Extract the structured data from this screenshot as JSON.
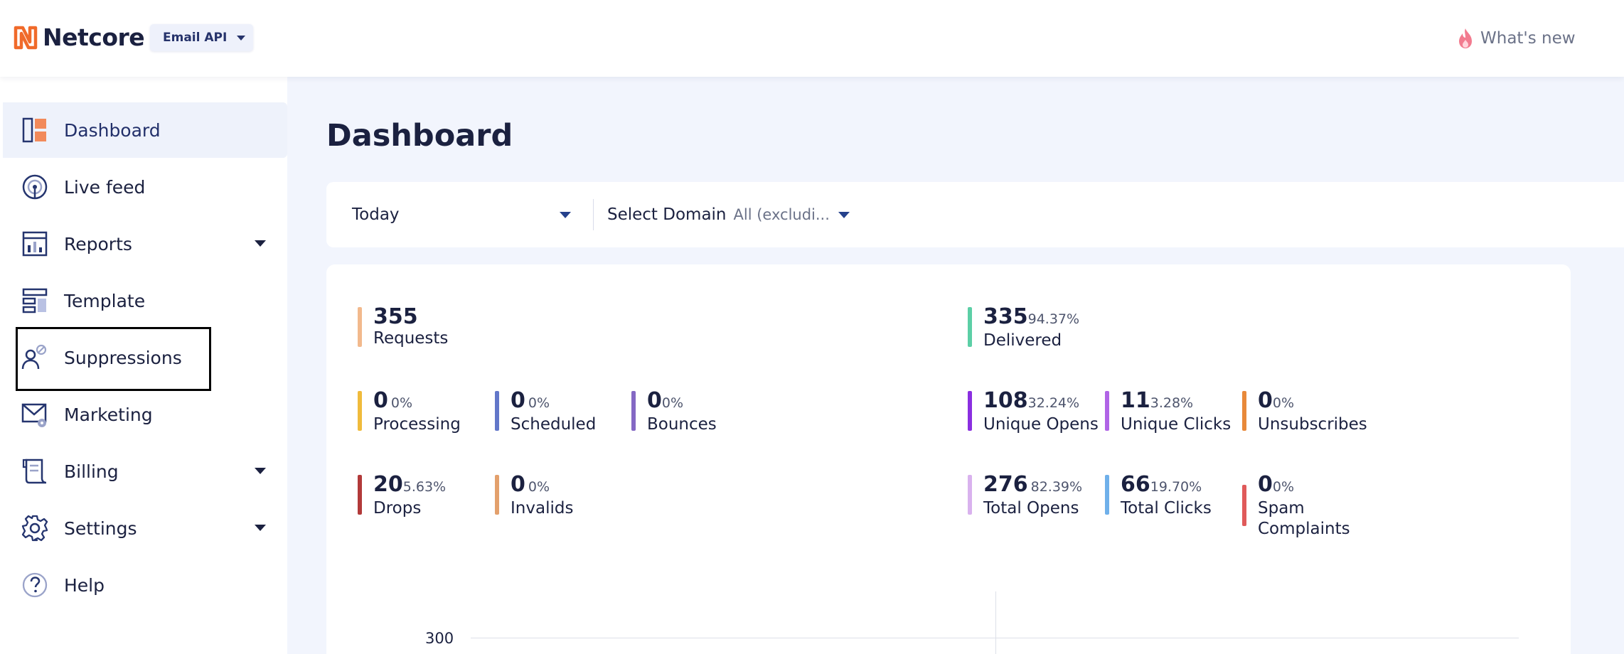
{
  "header": {
    "brand": "Netcore",
    "product": "Email API",
    "whats_new": "What's new"
  },
  "sidebar": {
    "items": [
      {
        "label": "Dashboard",
        "icon": "dashboard-icon",
        "active": true
      },
      {
        "label": "Live feed",
        "icon": "live-feed-icon"
      },
      {
        "label": "Reports",
        "icon": "reports-icon",
        "expandable": true
      },
      {
        "label": "Template",
        "icon": "template-icon"
      },
      {
        "label": "Suppressions",
        "icon": "suppressions-icon",
        "highlighted": true
      },
      {
        "label": "Marketing",
        "icon": "marketing-icon"
      },
      {
        "label": "Billing",
        "icon": "billing-icon",
        "expandable": true
      },
      {
        "label": "Settings",
        "icon": "gear-icon",
        "expandable": true
      },
      {
        "label": "Help",
        "icon": "help-icon"
      }
    ]
  },
  "main": {
    "title": "Dashboard",
    "filters": {
      "period": "Today",
      "domain_label": "Select Domain",
      "domain_value": "All (excludi..."
    },
    "stats": {
      "requests": {
        "value": "355",
        "pct": "",
        "label": "Requests",
        "color": "#f2b98d"
      },
      "delivered": {
        "value": "335",
        "pct": "94.37%",
        "label": "Delivered",
        "color": "#5ccfa6"
      },
      "processing": {
        "value": "0",
        "pct": "0%",
        "label": "Processing",
        "color": "#f0bb3c"
      },
      "scheduled": {
        "value": "0",
        "pct": "0%",
        "label": "Scheduled",
        "color": "#6277c9"
      },
      "bounces": {
        "value": "0",
        "pct": "0%",
        "label": "Bounces",
        "color": "#8468c4"
      },
      "unique_opens": {
        "value": "108",
        "pct": "32.24%",
        "label": "Unique Opens",
        "color": "#8a2fe0"
      },
      "unique_clicks": {
        "value": "11",
        "pct": "3.28%",
        "label": "Unique Clicks",
        "color": "#b064e6"
      },
      "unsubscribes": {
        "value": "0",
        "pct": "0%",
        "label": "Unsubscribes",
        "color": "#e8893a"
      },
      "drops": {
        "value": "20",
        "pct": "5.63%",
        "label": "Drops",
        "color": "#b23a3a"
      },
      "invalids": {
        "value": "0",
        "pct": "0%",
        "label": "Invalids",
        "color": "#e3a06c"
      },
      "total_opens": {
        "value": "276",
        "pct": "82.39%",
        "label": "Total Opens",
        "color": "#d9b2ee"
      },
      "total_clicks": {
        "value": "66",
        "pct": "19.70%",
        "label": "Total Clicks",
        "color": "#6fb0ea"
      },
      "spam_complaints": {
        "value": "0",
        "pct": "0%",
        "label": "Spam Complaints",
        "color": "#e05a5a"
      }
    },
    "chart": {
      "y_tick": "300"
    }
  }
}
